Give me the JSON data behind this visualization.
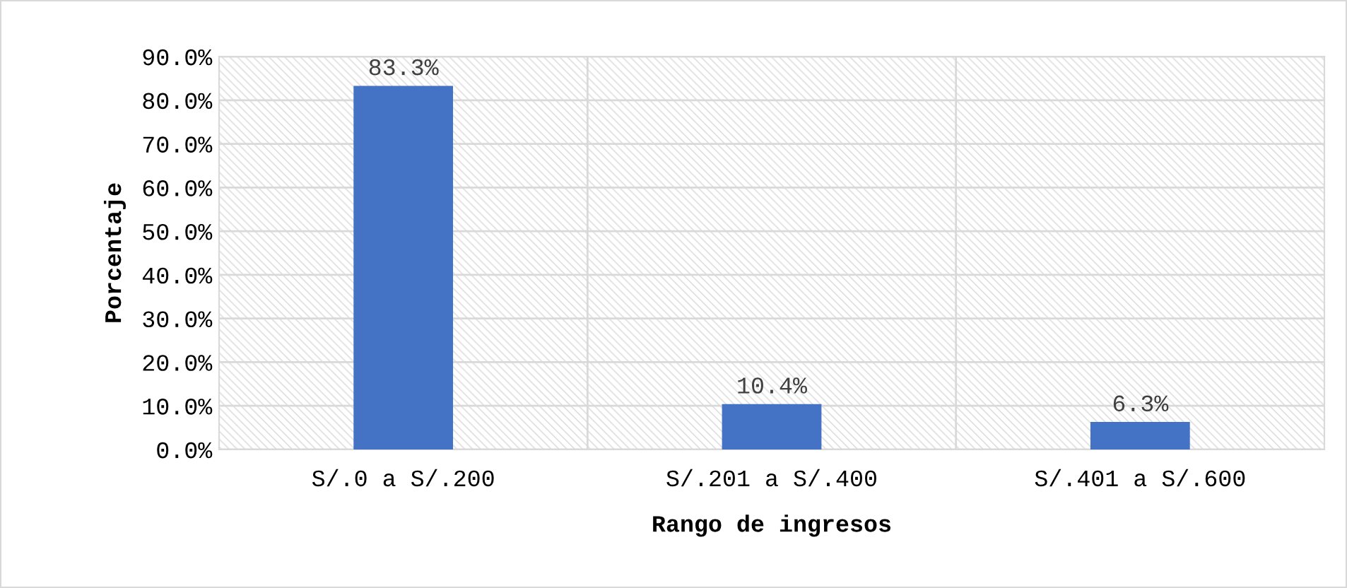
{
  "chart_data": {
    "type": "bar",
    "xlabel": "Rango de ingresos",
    "ylabel": "Porcentaje",
    "categories": [
      "S/.0 a S/.200",
      "S/.201 a S/.400",
      "S/.401 a S/.600"
    ],
    "values": [
      83.3,
      10.4,
      6.3
    ],
    "color": "#4472c4",
    "value_labels": [
      "83.3%",
      "10.4%",
      "6.3%"
    ],
    "ylim": [
      0,
      90
    ],
    "yticks": [
      {
        "value": 0,
        "label": "0.0%"
      },
      {
        "value": 10,
        "label": "10.0%"
      },
      {
        "value": 20,
        "label": "20.0%"
      },
      {
        "value": 30,
        "label": "30.0%"
      },
      {
        "value": 40,
        "label": "40.0%"
      },
      {
        "value": 50,
        "label": "50.0%"
      },
      {
        "value": 60,
        "label": "60.0%"
      },
      {
        "value": 70,
        "label": "70.0%"
      },
      {
        "value": 80,
        "label": "80.0%"
      },
      {
        "value": 90,
        "label": "90.0%"
      }
    ],
    "grid": true
  }
}
